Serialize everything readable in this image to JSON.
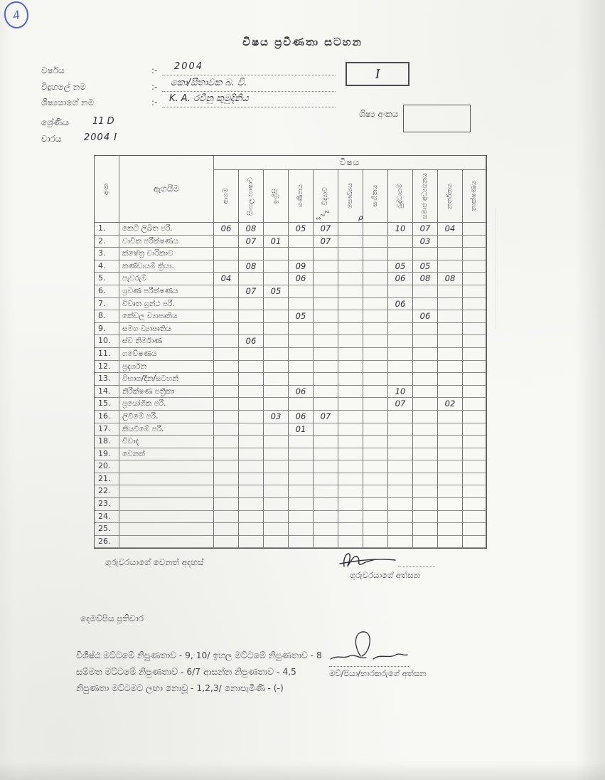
{
  "page": {
    "corner_mark": "4",
    "title": "විෂය ප්‍රවීණතා සටහන"
  },
  "fields": {
    "separator": ":-",
    "year_label": "වර්ෂය",
    "year_value": "2004",
    "school_label": "විදුහලේ නම",
    "school_value": "කො/සීතාවක බ. වි.",
    "student_label": "ශිෂ්‍යයාගේ නම",
    "student_value": "K. A. රවීනු කුමුදිනිය",
    "term_box_value": "I",
    "student_no_label": "ශිෂ්‍ය අංකය",
    "student_no_value": "",
    "grade_label": "ශ්‍රේණිය",
    "grade_value": "11  D",
    "term_label": "වාරය",
    "term_value": "2004  I"
  },
  "table": {
    "subject_span_header": "විෂය",
    "number_col_header": "අංක",
    "activity_col_header": "ඇගයීම",
    "subjects": [
      "ආගම",
      "සිංහල භාෂාව",
      "ඉංග්‍රීසි",
      "ගණිතය",
      "විද්‍යාව",
      "සෞඛ්‍යය",
      "සංගීතය",
      "බුද්ධාගම",
      "සමාජ අධ්‍යයනය",
      "නර්තනය",
      "තාක්ෂණය"
    ],
    "science_header_scribble": "illegible diagonal handwriting",
    "stray_mark": "ρ",
    "rows": [
      {
        "no": "1.",
        "label": "කෙටි ලිඛිත පරී.",
        "marks": [
          "06",
          "08",
          "",
          "05",
          "07",
          "",
          "",
          "10",
          "07",
          "04",
          ""
        ]
      },
      {
        "no": "2.",
        "label": "වාචික පරීක්ෂණය",
        "marks": [
          "",
          "07",
          "01",
          "",
          "07",
          "",
          "",
          "",
          "03",
          "",
          ""
        ]
      },
      {
        "no": "3.",
        "label": "ක්ෂේත්‍ර චාරිකාව",
        "marks": [
          "",
          "",
          "",
          "",
          "",
          "",
          "",
          "",
          "",
          "",
          ""
        ]
      },
      {
        "no": "4.",
        "label": "කණ්ඩායම් ක්‍රියා.",
        "marks": [
          "",
          "08",
          "",
          "09",
          "",
          "",
          "",
          "05",
          "05",
          "",
          ""
        ]
      },
      {
        "no": "5.",
        "label": "පැවරුම්",
        "marks": [
          "04",
          "",
          "",
          "06",
          "",
          "",
          "",
          "06",
          "08",
          "08",
          ""
        ]
      },
      {
        "no": "6.",
        "label": "ශ්‍රවණ පරීක්ෂණය",
        "marks": [
          "",
          "07",
          "05",
          "",
          "",
          "",
          "",
          "",
          "",
          "",
          ""
        ]
      },
      {
        "no": "7.",
        "label": "විවෘත ග්‍රන්ථ පරී.",
        "marks": [
          "",
          "",
          "",
          "",
          "",
          "",
          "",
          "06",
          "",
          "",
          ""
        ]
      },
      {
        "no": "8.",
        "label": "කේවල ව්‍යාපෘතිය",
        "marks": [
          "",
          "",
          "",
          "05",
          "",
          "",
          "",
          "",
          "06",
          "",
          ""
        ]
      },
      {
        "no": "9.",
        "label": "සමග ව්‍යාපෘතිය",
        "marks": [
          "",
          "",
          "",
          "",
          "",
          "",
          "",
          "",
          "",
          "",
          ""
        ]
      },
      {
        "no": "10.",
        "label": "ස්ව නිර්මාණ",
        "marks": [
          "",
          "06",
          "",
          "",
          "",
          "",
          "",
          "",
          "",
          "",
          ""
        ]
      },
      {
        "no": "11.",
        "label": "ගවේෂණය",
        "marks": [
          "",
          "",
          "",
          "",
          "",
          "",
          "",
          "",
          "",
          "",
          ""
        ]
      },
      {
        "no": "12.",
        "label": "ප්‍රදර්ශන",
        "marks": [
          "",
          "",
          "",
          "",
          "",
          "",
          "",
          "",
          "",
          "",
          ""
        ]
      },
      {
        "no": "13.",
        "label": "විභාග/දින/සටහන්",
        "marks": [
          "",
          "",
          "",
          "",
          "",
          "",
          "",
          "",
          "",
          "",
          ""
        ]
      },
      {
        "no": "14.",
        "label": "නිරීක්ෂණ පත්‍රිකා",
        "marks": [
          "",
          "",
          "",
          "06",
          "",
          "",
          "",
          "10",
          "",
          "",
          ""
        ]
      },
      {
        "no": "15.",
        "label": "ප්‍රයෝගික පරී.",
        "marks": [
          "",
          "",
          "",
          "",
          "",
          "",
          "",
          "07",
          "",
          "02",
          ""
        ]
      },
      {
        "no": "16.",
        "label": "ලිවීමේ පරී.",
        "marks": [
          "",
          "",
          "03",
          "06",
          "07",
          "",
          "",
          "",
          "",
          "",
          ""
        ]
      },
      {
        "no": "17.",
        "label": "කියවීමේ පරී.",
        "marks": [
          "",
          "",
          "",
          "01",
          "",
          "",
          "",
          "",
          "",
          "",
          ""
        ]
      },
      {
        "no": "18.",
        "label": "විවාද",
        "marks": [
          "",
          "",
          "",
          "",
          "",
          "",
          "",
          "",
          "",
          "",
          ""
        ]
      },
      {
        "no": "19.",
        "label": "වෙනත්",
        "marks": [
          "",
          "",
          "",
          "",
          "",
          "",
          "",
          "",
          "",
          "",
          ""
        ]
      },
      {
        "no": "20.",
        "label": "",
        "marks": [
          "",
          "",
          "",
          "",
          "",
          "",
          "",
          "",
          "",
          "",
          ""
        ]
      },
      {
        "no": "21.",
        "label": "",
        "marks": [
          "",
          "",
          "",
          "",
          "",
          "",
          "",
          "",
          "",
          "",
          ""
        ]
      },
      {
        "no": "22.",
        "label": "",
        "marks": [
          "",
          "",
          "",
          "",
          "",
          "",
          "",
          "",
          "",
          "",
          ""
        ]
      },
      {
        "no": "23.",
        "label": "",
        "marks": [
          "",
          "",
          "",
          "",
          "",
          "",
          "",
          "",
          "",
          "",
          ""
        ]
      },
      {
        "no": "24.",
        "label": "",
        "marks": [
          "",
          "",
          "",
          "",
          "",
          "",
          "",
          "",
          "",
          "",
          ""
        ]
      },
      {
        "no": "25.",
        "label": "",
        "marks": [
          "",
          "",
          "",
          "",
          "",
          "",
          "",
          "",
          "",
          "",
          ""
        ]
      },
      {
        "no": "26.",
        "label": "",
        "marks": [
          "",
          "",
          "",
          "",
          "",
          "",
          "",
          "",
          "",
          "",
          ""
        ]
      }
    ]
  },
  "footer": {
    "teacher_comment_label": "ගුරුවරයාගේ වෙනත් අදහස්",
    "teacher_signature_label": "ගුරුවරයාගේ අත්සන",
    "parent_response_label": "දෙමව්පිය ප්‍රතිචාර",
    "grading_key_line1": "විශිෂ්ඨ මට්ටමේ නිපුණතාව - 9, 10/ ඉහල මට්ටමේ නිපුණතාව - 8",
    "grading_key_line2": "සම්මත මට්ටමේ නිපුණතාව - 6/7 ආසන්න නිපුණතාව - 4,5",
    "grading_key_line3": "නිපුණතා මට්ටමට ලඟා නොවූ - 1,2,3/ නොපැමිණි - (-)",
    "parent_signature_label": "මව්/පියා/භාරකරුගේ අත්සන"
  },
  "colors": {
    "paper": "#f7f7f4",
    "print_ink": "#45464b",
    "hand_ink": "#2e2f38",
    "pen_blue": "#5163cf",
    "table_line": "#767676"
  }
}
